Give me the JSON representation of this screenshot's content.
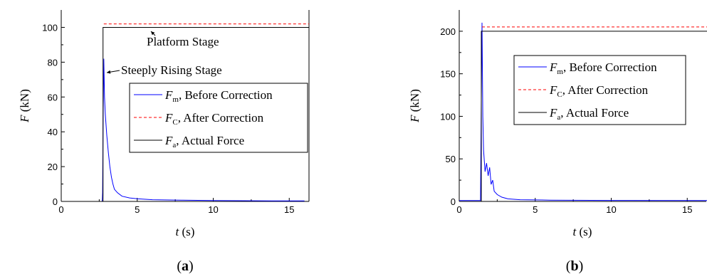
{
  "chart_data": [
    {
      "type": "line",
      "panel_label": "(a)",
      "xlabel": "t (s)",
      "ylabel": "F (kN)",
      "xlim": [
        0,
        16.3
      ],
      "ylim": [
        0,
        110
      ],
      "x_ticks": [
        0,
        5,
        10,
        15
      ],
      "y_ticks": [
        0,
        20,
        40,
        60,
        80,
        100
      ],
      "grid": false,
      "legend_position": "center-right",
      "annotations": [
        {
          "text": "Platform Stage",
          "x": 9.5,
          "y": 100
        },
        {
          "text": "Steeply Rising Stage",
          "x": 3.1,
          "y": 81
        }
      ],
      "series": [
        {
          "name": "F_m, Before Correction",
          "name_main": "F",
          "name_sub": "m",
          "name_rest": ", Before Correction",
          "color": "#0000ff",
          "style": "solid",
          "x": [
            0,
            2.7,
            2.72,
            2.76,
            2.8,
            2.85,
            2.9,
            3.0,
            3.1,
            3.2,
            3.3,
            3.4,
            3.5,
            3.7,
            4.0,
            4.5,
            5.0,
            6.0,
            8.0,
            10.0,
            12.0,
            14.0,
            16.0
          ],
          "y": [
            0,
            0,
            5,
            50,
            82,
            60,
            50,
            38,
            28,
            20,
            14,
            10,
            7,
            5,
            3,
            2,
            1.5,
            1,
            0.7,
            0.5,
            0.4,
            0.3,
            0.3
          ]
        },
        {
          "name": "F_C, After Correction",
          "name_main": "F",
          "name_sub": "C",
          "name_rest": ", After Correction",
          "color": "#ff0000",
          "style": "dashed",
          "x": [
            2.8,
            16.3
          ],
          "y": [
            102,
            102
          ]
        },
        {
          "name": "F_a, Actual Force",
          "name_main": "F",
          "name_sub": "a",
          "name_rest": ",  Actual Force",
          "color": "#000000",
          "style": "solid",
          "x": [
            0,
            2.75,
            2.75,
            16.3
          ],
          "y": [
            0,
            0,
            100,
            100
          ]
        }
      ]
    },
    {
      "type": "line",
      "panel_label": "(b)",
      "xlabel": "t (s)",
      "ylabel": "F (kN)",
      "xlim": [
        0,
        16.3
      ],
      "ylim": [
        0,
        225
      ],
      "x_ticks": [
        0,
        5,
        10,
        15
      ],
      "y_ticks": [
        0,
        50,
        100,
        150,
        200
      ],
      "grid": false,
      "legend_position": "center-right",
      "series": [
        {
          "name": "F_m, Before Correction",
          "name_main": "F",
          "name_sub": "m",
          "name_rest": ", Before Correction",
          "color": "#0000ff",
          "style": "solid",
          "x": [
            0,
            1.4,
            1.45,
            1.5,
            1.55,
            1.6,
            1.7,
            1.8,
            1.9,
            2.0,
            2.1,
            2.2,
            2.3,
            2.5,
            2.8,
            3.2,
            4.0,
            6.0,
            10.0,
            16.3
          ],
          "y": [
            1,
            1,
            120,
            210,
            100,
            60,
            35,
            45,
            30,
            40,
            20,
            25,
            12,
            8,
            5,
            3,
            2,
            1.5,
            1.2,
            1
          ]
        },
        {
          "name": "F_C, After Correction",
          "name_main": "F",
          "name_sub": "C",
          "name_rest": ", After Correction",
          "color": "#ff0000",
          "style": "dashed",
          "x": [
            1.5,
            16.3
          ],
          "y": [
            205,
            205
          ]
        },
        {
          "name": "F_a, Actual Force",
          "name_main": "F",
          "name_sub": "a",
          "name_rest": ",  Actual Force",
          "color": "#000000",
          "style": "solid",
          "x": [
            0,
            1.45,
            1.45,
            16.3
          ],
          "y": [
            0,
            0,
            200,
            200
          ]
        }
      ]
    }
  ]
}
